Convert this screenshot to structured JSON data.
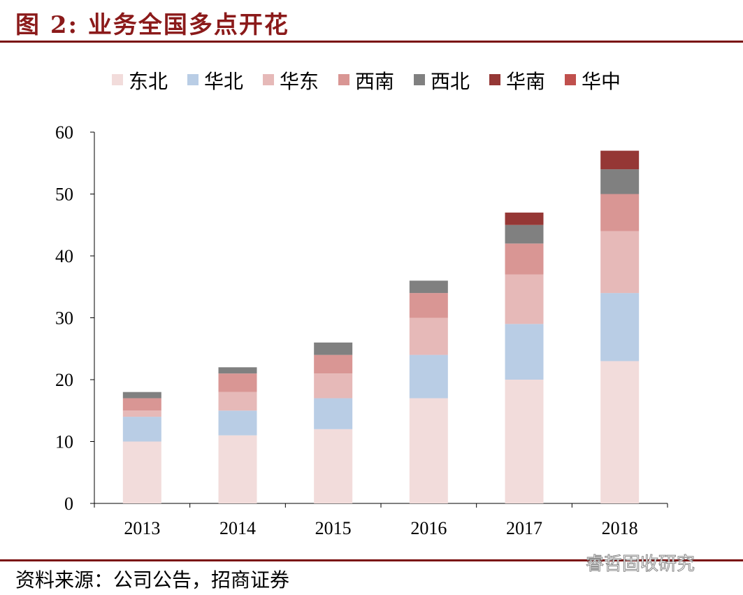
{
  "header": {
    "title": "图 2:  业务全国多点开花"
  },
  "footer": {
    "source": "资料来源：公司公告，招商证券",
    "watermark": "睿哲固收研究"
  },
  "chart_data": {
    "type": "bar",
    "stacked": true,
    "title": "",
    "xlabel": "",
    "ylabel": "",
    "categories": [
      "2013",
      "2014",
      "2015",
      "2016",
      "2017",
      "2018"
    ],
    "ylim": [
      0,
      60
    ],
    "yticks": [
      0,
      10,
      20,
      30,
      40,
      50,
      60
    ],
    "grid": false,
    "legend_position": "top",
    "series": [
      {
        "name": "东北",
        "values": [
          10,
          11,
          12,
          17,
          20,
          23
        ],
        "color": "#f2dcdb"
      },
      {
        "name": "华北",
        "values": [
          4,
          4,
          5,
          7,
          9,
          11
        ],
        "color": "#b9cde5"
      },
      {
        "name": "华东",
        "values": [
          1,
          3,
          4,
          6,
          8,
          10
        ],
        "color": "#e6b9b8"
      },
      {
        "name": "西南",
        "values": [
          2,
          3,
          3,
          4,
          5,
          6
        ],
        "color": "#d99694"
      },
      {
        "name": "西北",
        "values": [
          1,
          1,
          2,
          2,
          3,
          4
        ],
        "color": "#808080"
      },
      {
        "name": "华南",
        "values": [
          0,
          0,
          0,
          0,
          2,
          3
        ],
        "color": "#953735"
      },
      {
        "name": "华中",
        "values": [
          0,
          0,
          0,
          0,
          0,
          0
        ],
        "color": "#c0504d"
      }
    ]
  }
}
